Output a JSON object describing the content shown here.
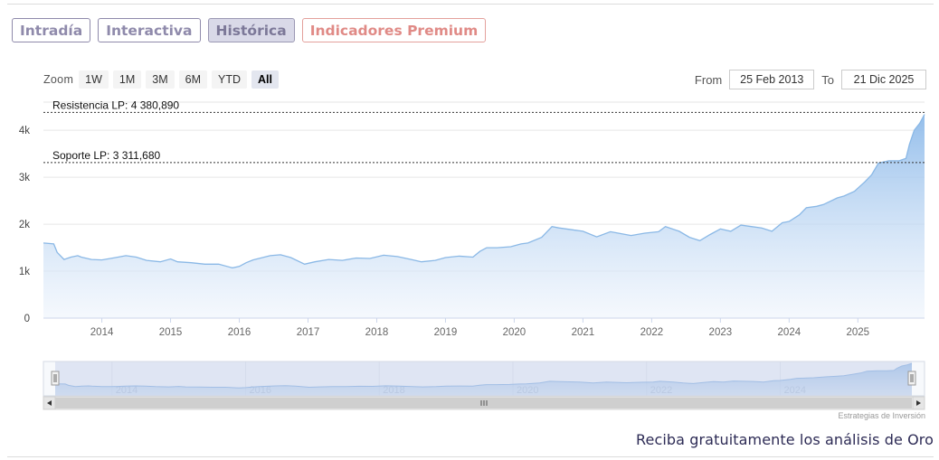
{
  "tabs": [
    {
      "label": "Intradía",
      "active": false,
      "premium": false
    },
    {
      "label": "Interactiva",
      "active": false,
      "premium": false
    },
    {
      "label": "Histórica",
      "active": true,
      "premium": false
    },
    {
      "label": "Indicadores Premium",
      "active": false,
      "premium": true
    }
  ],
  "zoom": {
    "label": "Zoom",
    "buttons": [
      "1W",
      "1M",
      "3M",
      "6M",
      "YTD",
      "All"
    ],
    "active": "All"
  },
  "range": {
    "from_label": "From",
    "from_value": "25 Feb 2013",
    "to_label": "To",
    "to_value": "21 Dic 2025"
  },
  "credits": "Estrategias de Inversión",
  "promo": "Reciba gratuitamente los análisis de Oro",
  "colors": {
    "line": "#8ab8e6",
    "area_top": "#8fbbea",
    "area_bottom": "#eef4fc",
    "tab_text": "#8f8aab",
    "premium_text": "#e08a86",
    "navigator_mask": "#ccd6eb"
  },
  "chart_data": {
    "type": "area",
    "x_range": [
      2013.15,
      2025.97
    ],
    "ylim": [
      0,
      4600
    ],
    "y_ticks": [
      0,
      1000,
      2000,
      3000,
      4000
    ],
    "y_tick_labels": [
      "0",
      "1k",
      "2k",
      "3k",
      "4k"
    ],
    "x_tick_labels": [
      "2014",
      "2015",
      "2016",
      "2017",
      "2018",
      "2019",
      "2020",
      "2021",
      "2022",
      "2023",
      "2024",
      "2025"
    ],
    "navigator_labels": [
      "2014",
      "2016",
      "2018",
      "2020",
      "2022",
      "2024"
    ],
    "grid": true,
    "horizontal_lines": [
      {
        "label": "Resistencia LP: 4 380,890",
        "value": 4380.89
      },
      {
        "label": "Soporte LP: 3 311,680",
        "value": 3311.68
      }
    ],
    "series": [
      {
        "x": [
          2013.15,
          2013.3,
          2013.35,
          2013.45,
          2013.55,
          2013.65,
          2013.7,
          2013.85,
          2014.0,
          2014.2,
          2014.35,
          2014.5,
          2014.65,
          2014.85,
          2015.0,
          2015.1,
          2015.3,
          2015.5,
          2015.7,
          2015.9,
          2016.0,
          2016.1,
          2016.2,
          2016.45,
          2016.6,
          2016.75,
          2016.95,
          2017.1,
          2017.3,
          2017.5,
          2017.7,
          2017.9,
          2018.1,
          2018.3,
          2018.5,
          2018.65,
          2018.85,
          2019.0,
          2019.2,
          2019.4,
          2019.5,
          2019.6,
          2019.75,
          2019.95,
          2020.1,
          2020.2,
          2020.4,
          2020.55,
          2020.65,
          2020.85,
          2021.0,
          2021.2,
          2021.4,
          2021.55,
          2021.7,
          2021.9,
          2022.1,
          2022.2,
          2022.4,
          2022.55,
          2022.7,
          2022.85,
          2023.0,
          2023.15,
          2023.3,
          2023.45,
          2023.6,
          2023.75,
          2023.9,
          2024.0,
          2024.15,
          2024.25,
          2024.4,
          2024.5,
          2024.7,
          2024.8,
          2024.95,
          2025.1,
          2025.2,
          2025.3,
          2025.45,
          2025.6,
          2025.7,
          2025.75,
          2025.82,
          2025.9,
          2025.97
        ],
        "y": [
          1600,
          1580,
          1400,
          1250,
          1300,
          1330,
          1300,
          1250,
          1240,
          1290,
          1330,
          1300,
          1230,
          1200,
          1260,
          1200,
          1180,
          1150,
          1150,
          1070,
          1100,
          1180,
          1240,
          1330,
          1350,
          1290,
          1150,
          1200,
          1250,
          1230,
          1280,
          1270,
          1340,
          1310,
          1250,
          1200,
          1230,
          1290,
          1320,
          1300,
          1420,
          1500,
          1500,
          1520,
          1580,
          1600,
          1720,
          1950,
          1920,
          1880,
          1850,
          1730,
          1840,
          1800,
          1760,
          1810,
          1840,
          1950,
          1850,
          1720,
          1650,
          1780,
          1900,
          1850,
          1980,
          1950,
          1920,
          1850,
          2030,
          2060,
          2200,
          2350,
          2380,
          2420,
          2560,
          2600,
          2700,
          2900,
          3050,
          3300,
          3350,
          3350,
          3400,
          3700,
          4000,
          4150,
          4340
        ]
      }
    ]
  }
}
